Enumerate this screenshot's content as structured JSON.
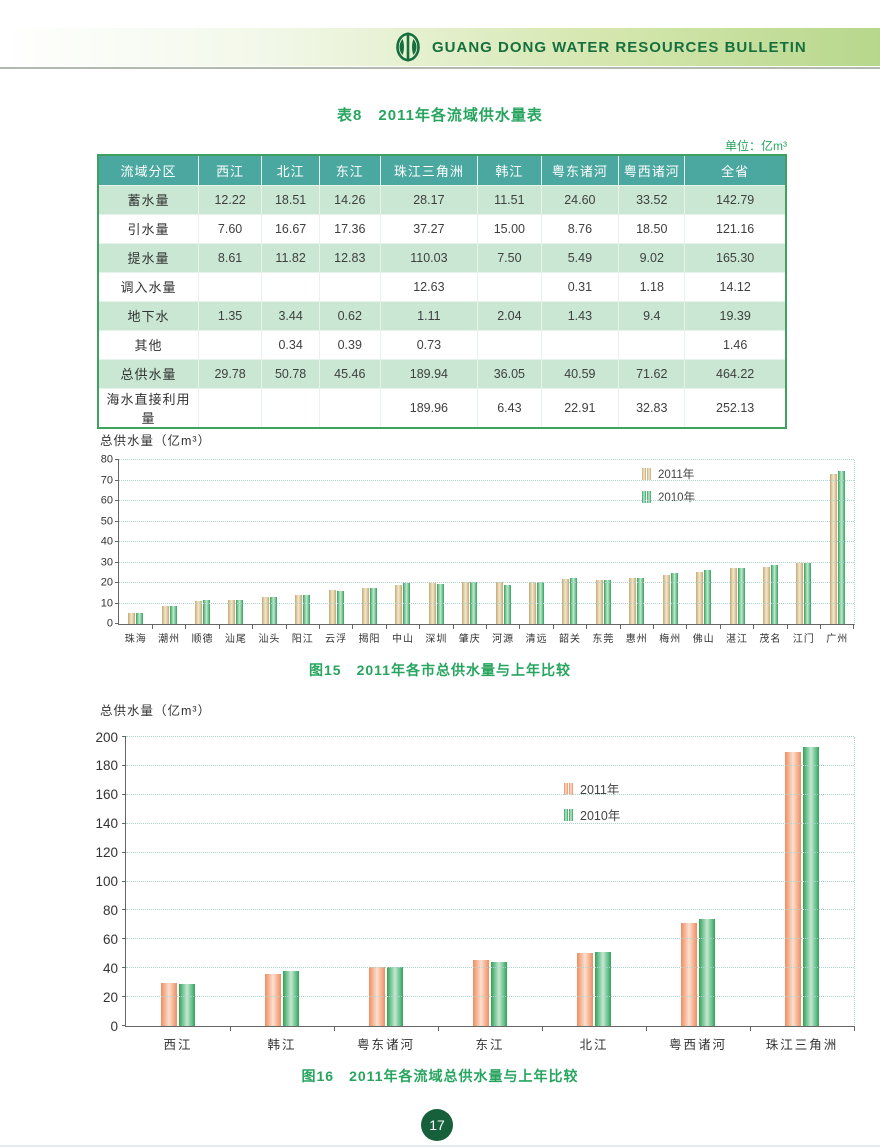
{
  "header": {
    "bulletin_title": "GUANG DONG WATER RESOURCES BULLETIN",
    "logo": "guangdong-water-logo"
  },
  "table_section": {
    "title": "表8　2011年各流域供水量表",
    "unit": "单位：亿m³",
    "columns": [
      "流域分区",
      "西江",
      "北江",
      "东江",
      "珠江三角洲",
      "韩江",
      "粤东诸河",
      "粤西诸河",
      "全省"
    ],
    "rows": [
      {
        "label": "蓄水量",
        "values": [
          "12.22",
          "18.51",
          "14.26",
          "28.17",
          "11.51",
          "24.60",
          "33.52",
          "142.79"
        ]
      },
      {
        "label": "引水量",
        "values": [
          "7.60",
          "16.67",
          "17.36",
          "37.27",
          "15.00",
          "8.76",
          "18.50",
          "121.16"
        ]
      },
      {
        "label": "提水量",
        "values": [
          "8.61",
          "11.82",
          "12.83",
          "110.03",
          "7.50",
          "5.49",
          "9.02",
          "165.30"
        ]
      },
      {
        "label": "调入水量",
        "values": [
          "",
          "",
          "",
          "12.63",
          "",
          "0.31",
          "1.18",
          "14.12"
        ]
      },
      {
        "label": "地下水",
        "values": [
          "1.35",
          "3.44",
          "0.62",
          "1.11",
          "2.04",
          "1.43",
          "9.4",
          "19.39"
        ]
      },
      {
        "label": "其他",
        "values": [
          "",
          "0.34",
          "0.39",
          "0.73",
          "",
          "",
          "",
          "1.46"
        ]
      },
      {
        "label": "总供水量",
        "values": [
          "29.78",
          "50.78",
          "45.46",
          "189.94",
          "36.05",
          "40.59",
          "71.62",
          "464.22"
        ]
      },
      {
        "label": "海水直接利用量",
        "values": [
          "",
          "",
          "",
          "189.96",
          "6.43",
          "22.91",
          "32.83",
          "252.13"
        ]
      }
    ]
  },
  "chart_data": [
    {
      "type": "bar",
      "title": "图15　2011年各市总供水量与上年比较",
      "ylabel": "总供水量（亿m³）",
      "xlabel": "",
      "ylim": [
        0,
        80
      ],
      "ytick": 10,
      "grid": "dotted-horizontal",
      "legend_position": "inside-upper-right",
      "categories": [
        "珠海",
        "潮州",
        "顺德",
        "汕尾",
        "汕头",
        "阳江",
        "云浮",
        "揭阳",
        "中山",
        "深圳",
        "肇庆",
        "河源",
        "清远",
        "韶关",
        "东莞",
        "惠州",
        "梅州",
        "佛山",
        "湛江",
        "茂名",
        "江门",
        "广州"
      ],
      "series": [
        {
          "name": "2011年",
          "color": "#C8A96E",
          "color_light": "#F2E9D2",
          "values": [
            5.5,
            9,
            11.2,
            11.8,
            13,
            14,
            16.5,
            17.5,
            19.2,
            20,
            20.5,
            20.5,
            20.3,
            22,
            21.3,
            22.3,
            24,
            25.3,
            27.5,
            28,
            30,
            73
          ]
        },
        {
          "name": "2010年",
          "color": "#2FA45C",
          "color_light": "#C5E8D2",
          "values": [
            5.5,
            8.8,
            11.8,
            11.8,
            13,
            14,
            16.2,
            17.5,
            20,
            19.5,
            20.5,
            19,
            20.3,
            22.5,
            21.3,
            22.3,
            24.7,
            26.3,
            27.5,
            29,
            30,
            74.5
          ]
        }
      ]
    },
    {
      "type": "bar",
      "title": "图16　2011年各流域总供水量与上年比较",
      "ylabel": "总供水量（亿m³）",
      "xlabel": "",
      "ylim": [
        0,
        200
      ],
      "ytick": 20,
      "grid": "dotted-horizontal",
      "legend_position": "inside-upper-middle",
      "categories": [
        "西江",
        "韩江",
        "粤东诸河",
        "东江",
        "北江",
        "粤西诸河",
        "珠江三角洲"
      ],
      "series": [
        {
          "name": "2011年",
          "color": "#EF8C5F",
          "color_light": "#FCE0D0",
          "values": [
            29.78,
            36.05,
            40.59,
            45.46,
            50.78,
            71.62,
            189.94
          ]
        },
        {
          "name": "2010年",
          "color": "#2FA45C",
          "color_light": "#C5E8D2",
          "values": [
            29,
            38,
            41,
            44.5,
            51,
            74,
            192.8
          ]
        }
      ]
    }
  ],
  "page_number": "17",
  "colors": {
    "title_green": "#27a55f",
    "table_header_teal": "#4BA8A1",
    "table_row_green": "#C9E7D2",
    "table_border_green": "#3fa160",
    "band_green": "#b7d78c",
    "logo_green": "#156f3e",
    "page_circle_green": "#16613B",
    "axis_gray": "#666666",
    "grid_teal": "#aed2cc"
  }
}
